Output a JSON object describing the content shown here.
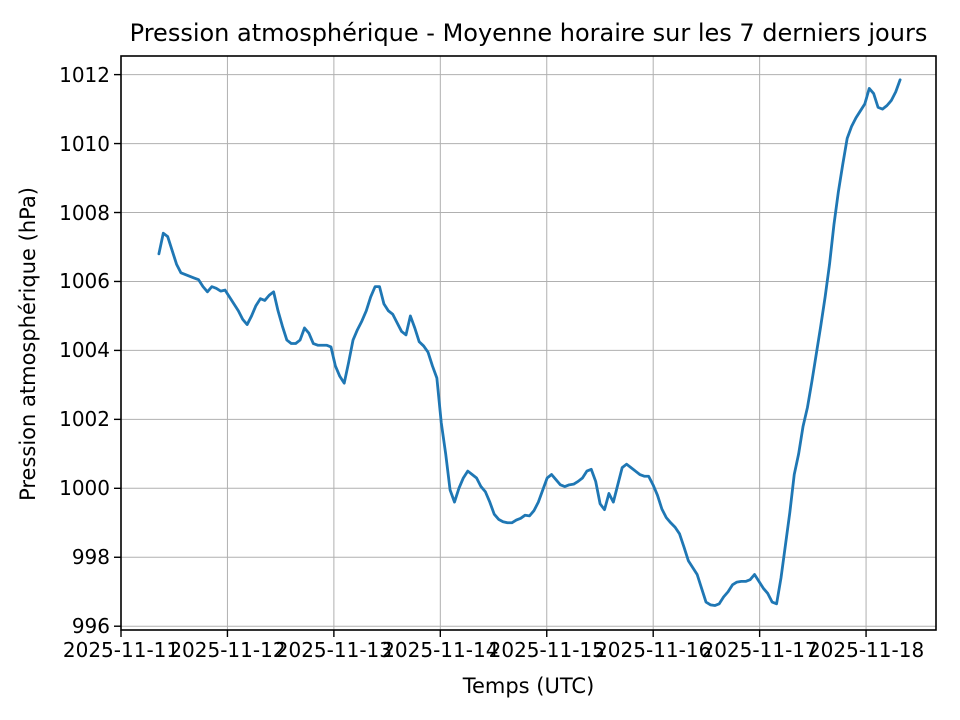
{
  "figure": {
    "title": "Pression atmosphérique - Moyenne horaire sur les 7 derniers jours",
    "xlabel": "Temps (UTC)",
    "ylabel": "Pression atmosphérique (hPa)"
  },
  "chart_data": {
    "type": "line",
    "title": "Pression atmosphérique - Moyenne horaire sur les 7 derniers jours",
    "xlabel": "Temps (UTC)",
    "ylabel": "Pression atmosphérique (hPa)",
    "x_tick_labels": [
      "2025-11-11",
      "2025-11-12",
      "2025-11-13",
      "2025-11-14",
      "2025-11-15",
      "2025-11-16",
      "2025-11-17",
      "2025-11-18"
    ],
    "y_ticks": [
      996,
      998,
      1000,
      1002,
      1004,
      1006,
      1008,
      1010,
      1012
    ],
    "ylim": [
      995.89,
      1012.54
    ],
    "xlim_days": [
      0,
      7.657
    ],
    "grid": true,
    "legend": false,
    "line_color": "#1f77b4",
    "grid_color": "#b0b0b0",
    "spine_color": "#000000",
    "sampling": "hourly",
    "data_x_start_day": 0.356,
    "data_x_end_day": 7.32,
    "series": [
      {
        "name": "Pression atmosphérique (hPa)",
        "values": [
          1006.8,
          1007.4,
          1007.3,
          1006.9,
          1006.5,
          1006.25,
          1006.2,
          1006.15,
          1006.1,
          1006.05,
          1005.85,
          1005.7,
          1005.85,
          1005.8,
          1005.72,
          1005.75,
          1005.55,
          1005.35,
          1005.15,
          1004.9,
          1004.75,
          1005.0,
          1005.3,
          1005.5,
          1005.45,
          1005.6,
          1005.7,
          1005.15,
          1004.7,
          1004.3,
          1004.2,
          1004.2,
          1004.3,
          1004.65,
          1004.5,
          1004.2,
          1004.15,
          1004.15,
          1004.15,
          1004.1,
          1003.55,
          1003.25,
          1003.05,
          1003.65,
          1004.3,
          1004.6,
          1004.85,
          1005.15,
          1005.55,
          1005.85,
          1005.85,
          1005.35,
          1005.15,
          1005.05,
          1004.8,
          1004.55,
          1004.45,
          1005.0,
          1004.65,
          1004.25,
          1004.13,
          1003.95,
          1003.55,
          1003.2,
          1001.9,
          1001.0,
          999.95,
          999.6,
          1000.0,
          1000.3,
          1000.5,
          1000.4,
          1000.3,
          1000.05,
          999.9,
          999.6,
          999.25,
          999.1,
          999.03,
          999.0,
          999.0,
          999.08,
          999.13,
          999.22,
          999.2,
          999.35,
          999.6,
          999.95,
          1000.3,
          1000.4,
          1000.25,
          1000.1,
          1000.05,
          1000.1,
          1000.12,
          1000.2,
          1000.3,
          1000.5,
          1000.55,
          1000.2,
          999.55,
          999.38,
          999.85,
          999.6,
          1000.1,
          1000.6,
          1000.7,
          1000.6,
          1000.5,
          1000.4,
          1000.35,
          1000.35,
          1000.1,
          999.8,
          999.4,
          999.15,
          999.0,
          998.87,
          998.68,
          998.3,
          997.9,
          997.7,
          997.5,
          997.1,
          996.7,
          996.62,
          996.6,
          996.65,
          996.85,
          997.0,
          997.2,
          997.28,
          997.3,
          997.3,
          997.35,
          997.5,
          997.3,
          997.1,
          996.95,
          996.7,
          996.65,
          997.4,
          998.35,
          999.3,
          1000.4,
          1001.0,
          1001.8,
          1002.35,
          1003.1,
          1003.9,
          1004.7,
          1005.55,
          1006.5,
          1007.65,
          1008.6,
          1009.4,
          1010.15,
          1010.5,
          1010.75,
          1010.95,
          1011.15,
          1011.6,
          1011.45,
          1011.05,
          1011.0,
          1011.1,
          1011.25,
          1011.5,
          1011.85
        ]
      }
    ]
  }
}
